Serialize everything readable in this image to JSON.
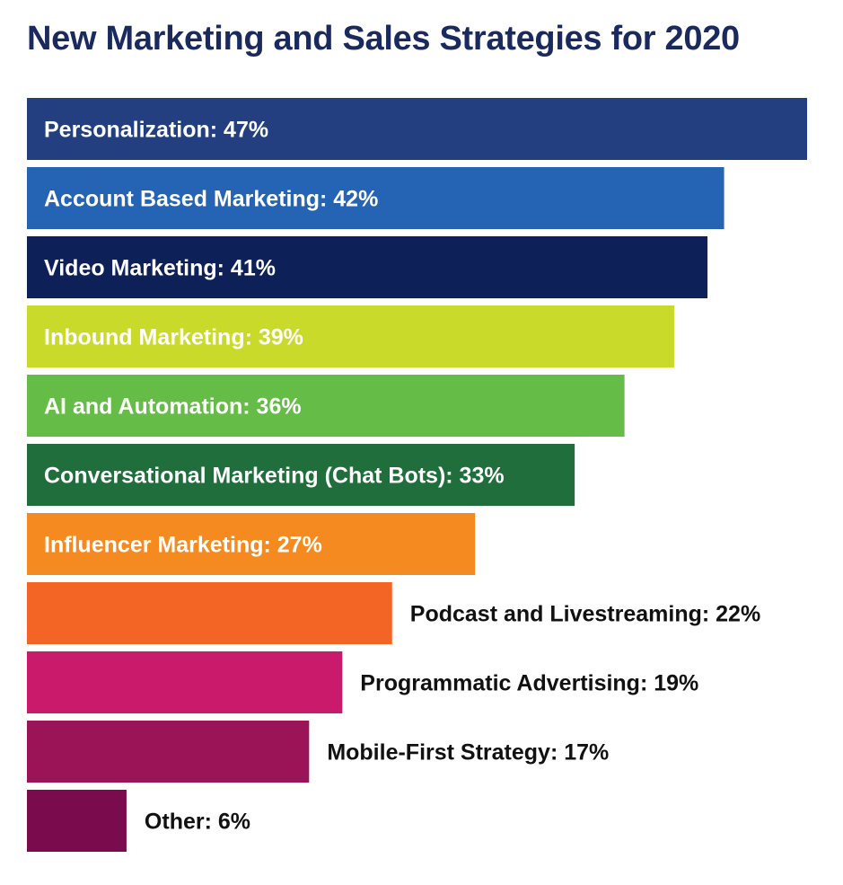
{
  "chart_data": {
    "type": "bar",
    "orientation": "horizontal",
    "title": "New Marketing and Sales Strategies for 2020",
    "xlabel": "",
    "ylabel": "",
    "xlim": [
      0,
      47
    ],
    "grid": false,
    "legend": "none",
    "bars": [
      {
        "label": "Personalization: 47%",
        "category": "Personalization",
        "value": 47,
        "color": "#233f80",
        "text_color": "#ffffff",
        "label_inside": true
      },
      {
        "label": "Account Based Marketing: 42%",
        "category": "Account Based Marketing",
        "value": 42,
        "color": "#2563b4",
        "text_color": "#ffffff",
        "label_inside": true
      },
      {
        "label": "Video Marketing: 41%",
        "category": "Video Marketing",
        "value": 41,
        "color": "#0d2158",
        "text_color": "#ffffff",
        "label_inside": true
      },
      {
        "label": "Inbound Marketing: 39%",
        "category": "Inbound Marketing",
        "value": 39,
        "color": "#c9da2b",
        "text_color": "#ffffff",
        "label_inside": true
      },
      {
        "label": "AI and Automation: 36%",
        "category": "AI and Automation",
        "value": 36,
        "color": "#65bc46",
        "text_color": "#ffffff",
        "label_inside": true
      },
      {
        "label": "Conversational Marketing (Chat Bots): 33%",
        "category": "Conversational Marketing (Chat Bots)",
        "value": 33,
        "color": "#1f6e3c",
        "text_color": "#ffffff",
        "label_inside": true
      },
      {
        "label": "Influencer Marketing: 27%",
        "category": "Influencer Marketing",
        "value": 27,
        "color": "#f58a20",
        "text_color": "#ffffff",
        "label_inside": true
      },
      {
        "label": "Podcast and Livestreaming: 22%",
        "category": "Podcast and Livestreaming",
        "value": 22,
        "color": "#f26524",
        "text_color": "#111111",
        "label_inside": false
      },
      {
        "label": "Programmatic Advertising: 19%",
        "category": "Programmatic Advertising",
        "value": 19,
        "color": "#c91a6b",
        "text_color": "#111111",
        "label_inside": false
      },
      {
        "label": "Mobile-First Strategy: 17%",
        "category": "Mobile-First Strategy",
        "value": 17,
        "color": "#9b1458",
        "text_color": "#111111",
        "label_inside": false
      },
      {
        "label": "Other: 6%",
        "category": "Other",
        "value": 6,
        "color": "#7a0c4e",
        "text_color": "#111111",
        "label_inside": false
      }
    ]
  }
}
